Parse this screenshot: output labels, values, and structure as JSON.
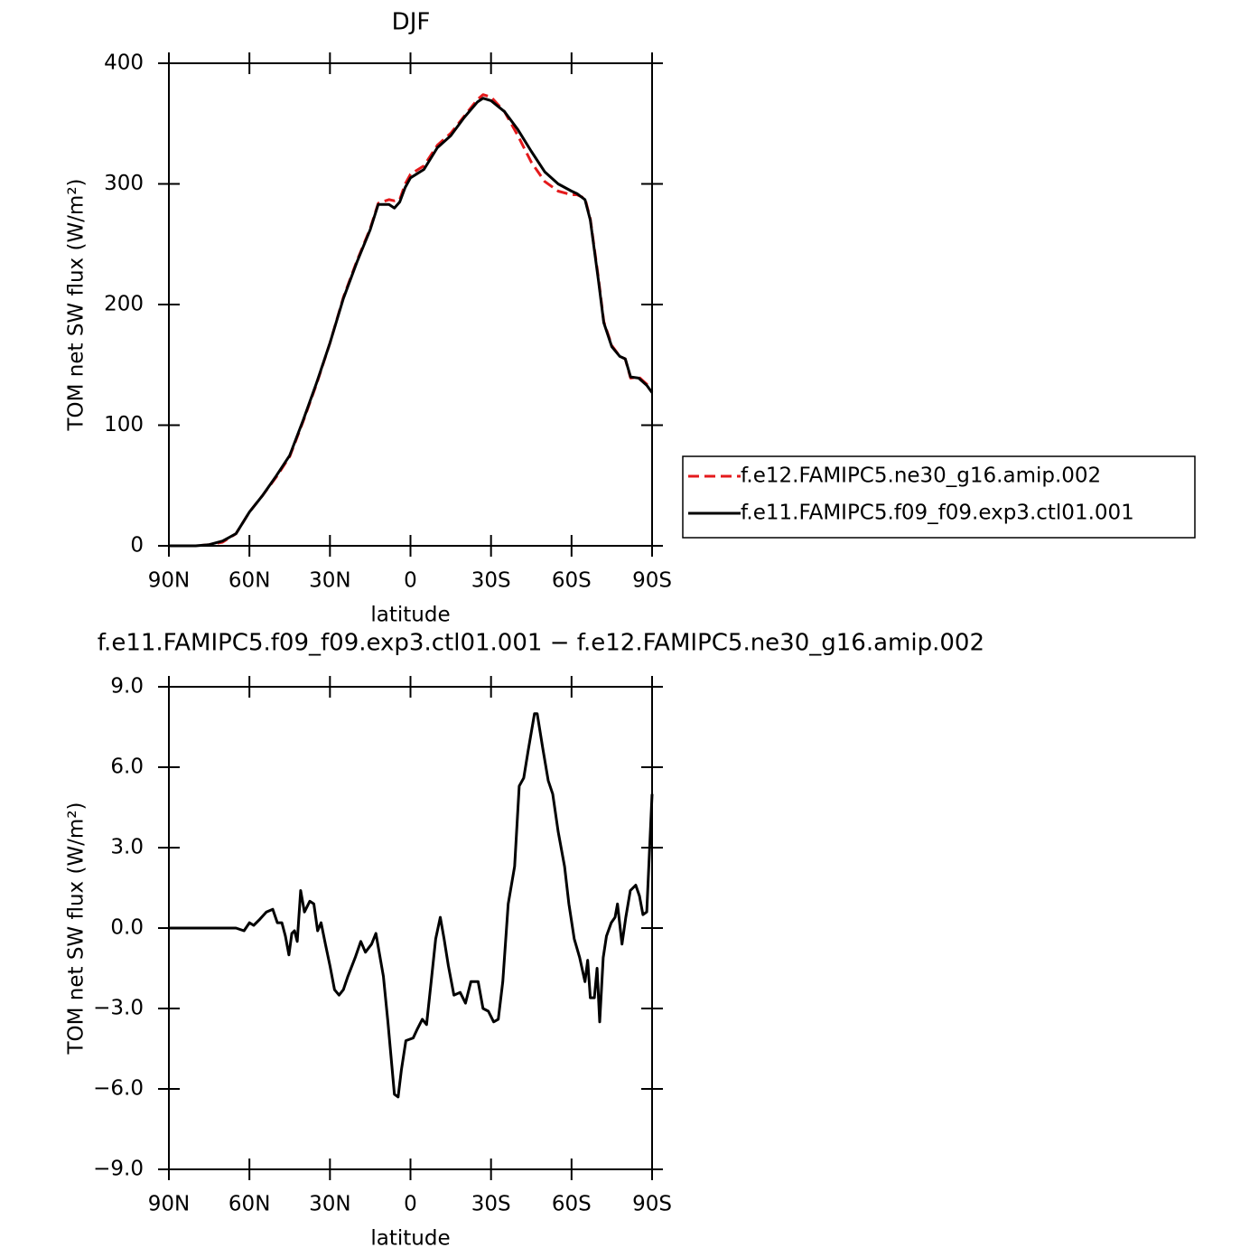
{
  "chart_data": [
    {
      "type": "line",
      "title": "DJF",
      "xlabel": "latitude",
      "ylabel": "TOM net SW flux (W/m²)",
      "x": [
        90,
        85,
        80,
        75,
        70,
        65,
        60,
        55,
        50,
        45,
        40,
        35,
        30,
        25,
        20,
        15,
        12,
        8,
        6,
        4,
        2,
        0,
        -5,
        -10,
        -15,
        -20,
        -25,
        -27,
        -30,
        -35,
        -40,
        -45,
        -50,
        -55,
        -60,
        -62,
        -65,
        -67,
        -70,
        -72,
        -75,
        -78,
        -80,
        -82,
        -85,
        -88,
        -90
      ],
      "series": [
        {
          "name": "f.e12.FAMIPC5.ne30_g16.amip.002",
          "color": "#e41a1c",
          "dash": "dashed",
          "values": [
            0,
            0,
            0,
            1,
            3,
            10,
            28,
            42,
            57,
            74,
            103,
            134,
            168,
            206,
            236,
            263,
            284,
            287,
            286,
            287,
            300,
            308,
            315,
            332,
            342,
            356,
            370,
            374,
            372,
            360,
            340,
            318,
            302,
            294,
            291,
            291,
            288,
            271,
            222,
            186,
            166,
            157,
            155,
            139,
            140,
            134,
            128
          ]
        },
        {
          "name": "f.e11.FAMIPC5.f09_f09.exp3.ctl01.001",
          "color": "#000000",
          "dash": "solid",
          "values": [
            0,
            0,
            0,
            1,
            4,
            10,
            28,
            42,
            58,
            75,
            104,
            135,
            168,
            205,
            235,
            262,
            283,
            283,
            280,
            285,
            297,
            305,
            312,
            330,
            340,
            355,
            368,
            371,
            369,
            360,
            345,
            327,
            310,
            300,
            294,
            292,
            287,
            270,
            220,
            185,
            165,
            157,
            155,
            140,
            139,
            133,
            127
          ]
        }
      ],
      "xlim": [
        90,
        -90
      ],
      "xticks": [
        {
          "value": 90,
          "label": "90N"
        },
        {
          "value": 60,
          "label": "60N"
        },
        {
          "value": 30,
          "label": "30N"
        },
        0,
        {
          "value": -30,
          "label": "30S"
        },
        {
          "value": -60,
          "label": "60S"
        },
        {
          "value": -90,
          "label": "90S"
        }
      ],
      "ylim": [
        0,
        400
      ],
      "yticks": [
        0,
        100,
        200,
        300,
        400
      ],
      "legend": "right"
    },
    {
      "type": "line",
      "title": "f.e11.FAMIPC5.f09_f09.exp3.ctl01.001 − f.e12.FAMIPC5.ne30_g16.amip.002",
      "xlabel": "latitude",
      "ylabel": "TOM net SW flux (W/m²)",
      "x": [
        90,
        80,
        70,
        65,
        62,
        60,
        58.4,
        56.4,
        53.7,
        51.3,
        49.6,
        47.9,
        46.6,
        45.3,
        44.2,
        43.2,
        42.2,
        40.9,
        39.5,
        37.5,
        36,
        34.6,
        33.3,
        31.7,
        30,
        28.3,
        26.6,
        25,
        23.3,
        20.6,
        18.5,
        16.8,
        14.5,
        12.9,
        10.1,
        8.4,
        6,
        4.6,
        3.4,
        1.7,
        -1,
        -2.4,
        -4.4,
        -6,
        -7.7,
        -9.4,
        -11.1,
        -12.5,
        -14.1,
        -16.2,
        -18.5,
        -20.5,
        -22.5,
        -25.2,
        -27,
        -29,
        -31,
        -32.7,
        -34.4,
        -36.4,
        -38.8,
        -40.5,
        -42.2,
        -43.8,
        -46.2,
        -47.2,
        -49.3,
        -51.3,
        -53,
        -55,
        -57.4,
        -59,
        -61,
        -63,
        -65,
        -66,
        -67,
        -68.5,
        -69.5,
        -70.5,
        -71.8,
        -73,
        -74.8,
        -76.2,
        -77.1,
        -78.8,
        -80.2,
        -81.9,
        -83.9,
        -85.3,
        -86.6,
        -88,
        -90
      ],
      "series": [
        {
          "color": "#000000",
          "dash": "solid",
          "values": [
            0,
            0,
            0,
            0,
            -0.1,
            0.2,
            0.1,
            0.3,
            0.6,
            0.7,
            0.2,
            0.2,
            -0.3,
            -1.0,
            -0.2,
            -0.1,
            -0.5,
            1.4,
            0.6,
            1.0,
            0.9,
            -0.1,
            0.2,
            -0.6,
            -1.4,
            -2.3,
            -2.5,
            -2.3,
            -1.8,
            -1.1,
            -0.5,
            -0.9,
            -0.6,
            -0.2,
            -1.8,
            -3.5,
            -6.2,
            -6.3,
            -5.3,
            -4.2,
            -4.1,
            -3.8,
            -3.4,
            -3.6,
            -2.0,
            -0.4,
            0.4,
            -0.4,
            -1.4,
            -2.5,
            -2.4,
            -2.8,
            -2.0,
            -2.0,
            -3.0,
            -3.1,
            -3.5,
            -3.4,
            -2.0,
            0.9,
            2.3,
            5.3,
            5.6,
            6.6,
            8.0,
            8.0,
            6.7,
            5.5,
            5.0,
            3.6,
            2.3,
            0.9,
            -0.4,
            -1.1,
            -2.0,
            -1.2,
            -2.6,
            -2.6,
            -1.5,
            -3.5,
            -1.1,
            -0.3,
            0.2,
            0.4,
            0.9,
            -0.6,
            0.4,
            1.4,
            1.6,
            1.2,
            0.5,
            0.6,
            5.0
          ]
        }
      ],
      "xlim": [
        90,
        -90
      ],
      "xticks": [
        {
          "value": 90,
          "label": "90N"
        },
        {
          "value": 60,
          "label": "60N"
        },
        {
          "value": 30,
          "label": "30N"
        },
        0,
        {
          "value": -30,
          "label": "30S"
        },
        {
          "value": -60,
          "label": "60S"
        },
        {
          "value": -90,
          "label": "90S"
        }
      ],
      "ylim": [
        -9,
        9
      ],
      "yticks": [
        {
          "value": -9,
          "label": "−9.0"
        },
        {
          "value": -6,
          "label": "−6.0"
        },
        {
          "value": -3,
          "label": "−3.0"
        },
        {
          "value": 0,
          "label": "0.0"
        },
        {
          "value": 3,
          "label": "3.0"
        },
        {
          "value": 6,
          "label": "6.0"
        },
        {
          "value": 9,
          "label": "9.0"
        }
      ]
    }
  ]
}
